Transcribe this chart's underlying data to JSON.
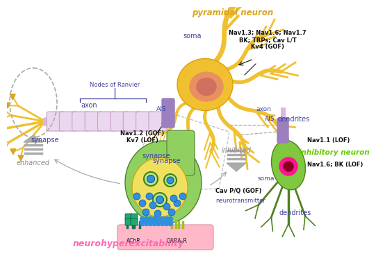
{
  "bg_color": "#ffffff",
  "pyramidal_neuron_label": "pyramidal neuron",
  "soma_label": "soma",
  "axon_label": "axon",
  "ais_label": "AIS",
  "ais_label2": "AIS",
  "synapse_label1": "synapse",
  "synapse_label2": "synapse",
  "nodes_ranvier_label": "Nodes of Ranvier",
  "dendrites_label": "dendrites",
  "inhibitory_neuron_label": "inhibitory neuron",
  "soma_label2": "soma",
  "axon_label2": "axon",
  "dendrites_label2": "dendrites",
  "nav13_label": "Nav1.3; Nav1.6; Nav1.7\nBK; TRPs; Cav L/T\nKv4 (GOF)",
  "nav12_label": "Nav1.2 (GOF)\nKv7 (LOF)",
  "nav11_label": "Nav1.1 (LOF)",
  "nav16_label": "Nav1.6; BK (LOF)",
  "cavpq_label": "Cav P/Q (GOF)",
  "neurotransmitter_label": "neurotransmitter",
  "achr_label": "AChR",
  "gabar_label": "GABAₐR",
  "enhanced_label": "enhanced",
  "inhibited_label": "inhibited",
  "neurohyperexcitability_label": "neurohyperexcitability",
  "blue": "#4040A0",
  "black": "#111111",
  "gray": "#888888",
  "pink": "#FF69B4",
  "green": "#66CC00",
  "gold": "#DAA520",
  "purple": "#9B7FBF",
  "soma_color": "#F0C030",
  "soma_edge": "#E0A000",
  "nucleus_color": "#E89060",
  "nucleus2_color": "#C85030",
  "axon_color": "#DDB8DD",
  "node_color": "#EAD8EE",
  "synapse_green": "#90EE60",
  "synapse_yellow": "#F0E060",
  "vesicle_blue": "#3090DD",
  "vesicle_dark": "#1050BB",
  "postmem_pink": "#FFB8C8",
  "receptor_cyan": "#30CCAA",
  "inh_soma_green": "#80C840",
  "inh_soma_dark": "#508020",
  "inh_nuc_pink": "#FF1493",
  "inh_nuc_dark": "#880020",
  "preterm_green": "#90D060",
  "preterm_dark": "#508030"
}
